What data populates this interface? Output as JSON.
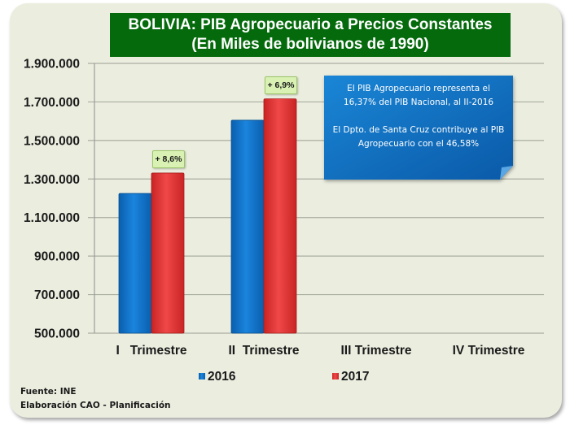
{
  "chart_data": {
    "type": "bar",
    "title": "BOLIVIA:  PIB Agropecuario  a Precios Constantes",
    "subtitle": "(En Miles de bolivianos de 1990)",
    "categories": [
      "I   Trimestre",
      "II  Trimestre",
      "III Trimestre",
      "IV Trimestre"
    ],
    "series": [
      {
        "name": "2016",
        "values": [
          1225000,
          1605000,
          null,
          null
        ],
        "color": "#0a6cc4"
      },
      {
        "name": "2017",
        "values": [
          1331000,
          1716000,
          null,
          null
        ],
        "color": "#e43232"
      }
    ],
    "ylim": [
      500000,
      1900000
    ],
    "yticks": [
      500000,
      700000,
      900000,
      1100000,
      1300000,
      1500000,
      1700000,
      1900000
    ],
    "ytick_labels": [
      "500.000",
      "700.000",
      "900.000",
      "1.100.000",
      "1.300.000",
      "1.500.000",
      "1.700.000",
      "1.900.000"
    ],
    "grid": true,
    "legend_position": "bottom",
    "annotations": [
      {
        "label": "+ 8,6%",
        "category": 0
      },
      {
        "label": "+ 6,9%",
        "category": 1
      }
    ],
    "xlabel": "",
    "ylabel": ""
  },
  "callout": {
    "line1": "El PIB Agropecuario representa el",
    "line2": "16,37% del PIB Nacional, al II-2016",
    "line3": "El Dpto. de Santa Cruz contribuye al PIB",
    "line4": "Agropecuario con el  46,58%",
    "color": "#0b6bbd"
  },
  "footer": {
    "source": "Fuente: INE",
    "credit": "Elaboración CAO - Planificación"
  },
  "colors": {
    "background": "#ebeedf",
    "title_bg": "#046a0b",
    "badge_bg": "#d9f2b4"
  }
}
